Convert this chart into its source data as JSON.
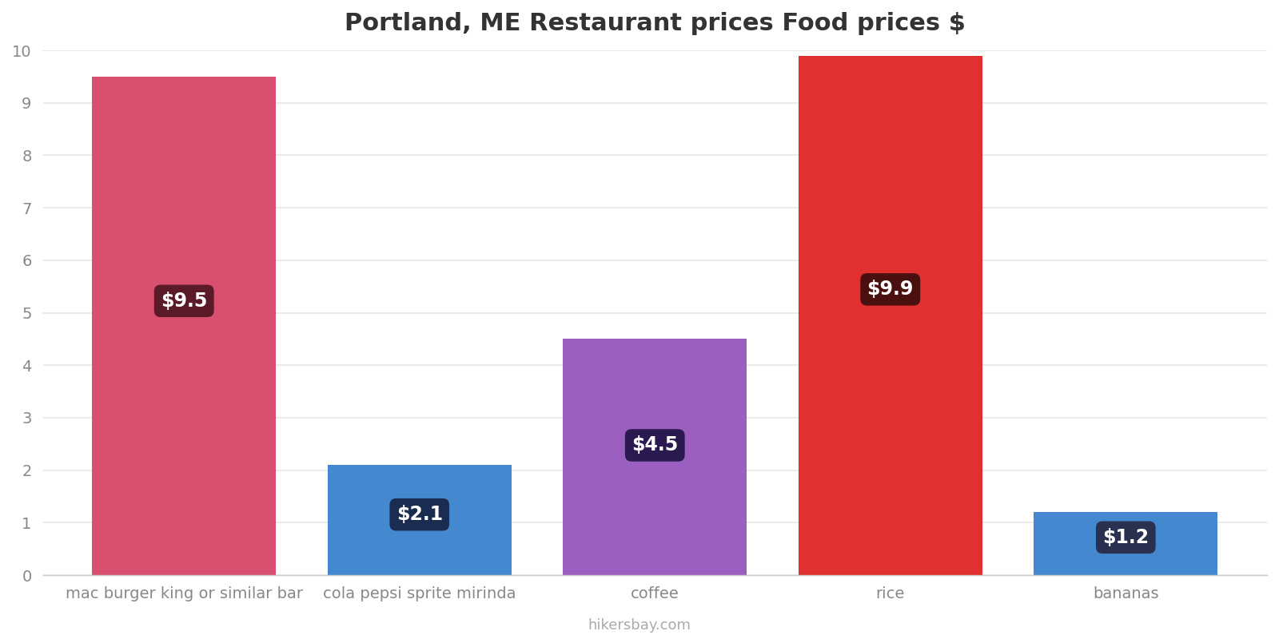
{
  "title": "Portland, ME Restaurant prices Food prices $",
  "categories": [
    "mac burger king or similar bar",
    "cola pepsi sprite mirinda",
    "coffee",
    "rice",
    "bananas"
  ],
  "values": [
    9.5,
    2.1,
    4.5,
    9.9,
    1.2
  ],
  "bar_colors": [
    "#d94f70",
    "#4488d0",
    "#9b5fc0",
    "#e03030",
    "#4488d0"
  ],
  "label_texts": [
    "$9.5",
    "$2.1",
    "$4.5",
    "$9.9",
    "$1.2"
  ],
  "label_box_colors": [
    "#5a1a28",
    "#1a2d50",
    "#2a1a50",
    "#4a1010",
    "#2a3050"
  ],
  "label_x_offset": [
    -0.18,
    0.0,
    0.0,
    0.0,
    0.0
  ],
  "ylim": [
    0,
    10
  ],
  "yticks": [
    0,
    1,
    2,
    3,
    4,
    5,
    6,
    7,
    8,
    9,
    10
  ],
  "title_fontsize": 22,
  "tick_fontsize": 14,
  "label_fontsize": 17,
  "footer_text": "hikersbay.com",
  "background_color": "#ffffff",
  "grid_color": "#e8e8e8",
  "bar_width": 0.78
}
